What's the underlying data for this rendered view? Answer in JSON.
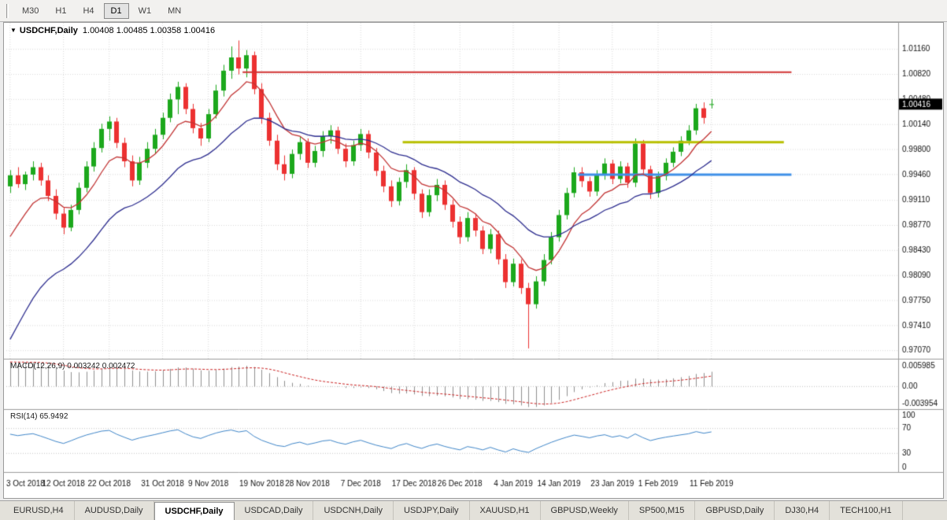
{
  "toolbar": {
    "timeframes": [
      {
        "label": "M30",
        "active": false
      },
      {
        "label": "H1",
        "active": false
      },
      {
        "label": "H4",
        "active": false
      },
      {
        "label": "D1",
        "active": true
      },
      {
        "label": "W1",
        "active": false
      },
      {
        "label": "MN",
        "active": false
      }
    ]
  },
  "chart": {
    "symbol": "USDCHF,Daily",
    "ohlc_text": "1.00408 1.00485 1.00358 1.00416",
    "dropdown_icon": "▼",
    "macd_label": "MACD(12,26,9) 0.003242 0.002472",
    "rsi_label": "RSI(14) 65.9492",
    "price_badge": "1.00416"
  },
  "chart_data": {
    "type": "candlestick",
    "symbol": "USDCHF",
    "timeframe": "Daily",
    "ohlc_current": {
      "open": 1.00408,
      "high": 1.00485,
      "low": 1.00358,
      "close": 1.00416
    },
    "x_tick_labels": [
      "3 Oct 2018",
      "12 Oct 2018",
      "22 Oct 2018",
      "31 Oct 2018",
      "9 Nov 2018",
      "19 Nov 2018",
      "28 Nov 2018",
      "7 Dec 2018",
      "17 Dec 2018",
      "26 Dec 2018",
      "4 Jan 2019",
      "14 Jan 2019",
      "23 Jan 2019",
      "1 Feb 2019",
      "11 Feb 2019"
    ],
    "price_ticks": [
      1.0116,
      1.0082,
      1.0048,
      1.0014,
      0.998,
      0.9946,
      0.9911,
      0.9877,
      0.9843,
      0.9809,
      0.9775,
      0.9741,
      0.9707
    ],
    "ylim": [
      0.9696,
      1.0152
    ],
    "total_slots": 117,
    "up_color": "#1ca81c",
    "down_color": "#ec3131",
    "candles": [
      [
        0.993,
        0.9952,
        0.9921,
        0.9945
      ],
      [
        0.9945,
        0.9956,
        0.9928,
        0.9933
      ],
      [
        0.9933,
        0.995,
        0.9925,
        0.9946
      ],
      [
        0.9946,
        0.9964,
        0.9938,
        0.9956
      ],
      [
        0.9956,
        0.9962,
        0.9931,
        0.9938
      ],
      [
        0.9938,
        0.9945,
        0.991,
        0.9917
      ],
      [
        0.9917,
        0.9926,
        0.9885,
        0.9893
      ],
      [
        0.9893,
        0.9901,
        0.9865,
        0.9874
      ],
      [
        0.9874,
        0.9905,
        0.9869,
        0.9898
      ],
      [
        0.9898,
        0.9935,
        0.9892,
        0.9928
      ],
      [
        0.9928,
        0.9964,
        0.9922,
        0.9957
      ],
      [
        0.9957,
        0.999,
        0.995,
        0.9982
      ],
      [
        0.9982,
        1.0015,
        0.9976,
        1.0008
      ],
      [
        1.0008,
        1.0025,
        0.9992,
        1.0018
      ],
      [
        1.0018,
        1.0023,
        0.9982,
        0.9989
      ],
      [
        0.9989,
        0.9996,
        0.9956,
        0.9964
      ],
      [
        0.9964,
        0.9972,
        0.993,
        0.9938
      ],
      [
        0.9938,
        0.997,
        0.9932,
        0.9962
      ],
      [
        0.9962,
        0.999,
        0.9955,
        0.9981
      ],
      [
        0.9981,
        1.0008,
        0.9974,
        1.0
      ],
      [
        1.0,
        1.003,
        0.9994,
        1.0023
      ],
      [
        1.0023,
        1.0056,
        1.0017,
        1.0048
      ],
      [
        1.0048,
        1.0072,
        1.0028,
        1.0065
      ],
      [
        1.0065,
        1.007,
        1.0028,
        1.0035
      ],
      [
        1.0035,
        1.0042,
        1.0002,
        1.0009
      ],
      [
        1.0009,
        1.0016,
        0.9985,
        0.9995
      ],
      [
        0.9995,
        1.0035,
        0.999,
        1.0028
      ],
      [
        1.0028,
        1.0068,
        1.0022,
        1.006
      ],
      [
        1.006,
        1.0095,
        1.0052,
        1.0087
      ],
      [
        1.0087,
        1.012,
        1.0076,
        1.0105
      ],
      [
        1.0105,
        1.0128,
        1.0082,
        1.009
      ],
      [
        1.009,
        1.0115,
        1.0078,
        1.0108
      ],
      [
        1.0108,
        1.0113,
        1.0055,
        1.0062
      ],
      [
        1.0062,
        1.007,
        1.0015,
        1.0023
      ],
      [
        1.0023,
        1.003,
        0.9985,
        0.9992
      ],
      [
        0.9992,
        1.0,
        0.9952,
        0.996
      ],
      [
        0.996,
        0.9972,
        0.9938,
        0.9947
      ],
      [
        0.9947,
        0.998,
        0.9941,
        0.9974
      ],
      [
        0.9974,
        0.9998,
        0.9966,
        0.999
      ],
      [
        0.999,
        0.9995,
        0.9955,
        0.9962
      ],
      [
        0.9962,
        0.9985,
        0.9956,
        0.9978
      ],
      [
        0.9978,
        1.0005,
        0.997,
        0.9998
      ],
      [
        0.9998,
        1.0013,
        0.9988,
        1.0006
      ],
      [
        1.0006,
        1.0011,
        0.9974,
        0.9981
      ],
      [
        0.9981,
        0.9988,
        0.9956,
        0.9964
      ],
      [
        0.9964,
        0.9992,
        0.9958,
        0.9986
      ],
      [
        0.9986,
        1.0008,
        0.9978,
        1.0001
      ],
      [
        1.0001,
        1.0006,
        0.9968,
        0.9976
      ],
      [
        0.9976,
        0.9982,
        0.9944,
        0.9951
      ],
      [
        0.9951,
        0.9958,
        0.9922,
        0.993
      ],
      [
        0.993,
        0.9938,
        0.9902,
        0.991
      ],
      [
        0.991,
        0.9942,
        0.9904,
        0.9936
      ],
      [
        0.9936,
        0.996,
        0.9928,
        0.9952
      ],
      [
        0.9952,
        0.9956,
        0.9912,
        0.992
      ],
      [
        0.992,
        0.9926,
        0.9887,
        0.9895
      ],
      [
        0.9895,
        0.9926,
        0.9889,
        0.9918
      ],
      [
        0.9918,
        0.994,
        0.991,
        0.9932
      ],
      [
        0.9932,
        0.9938,
        0.9898,
        0.9905
      ],
      [
        0.9905,
        0.9912,
        0.9874,
        0.9882
      ],
      [
        0.9882,
        0.9889,
        0.9852,
        0.9861
      ],
      [
        0.9861,
        0.9895,
        0.9855,
        0.9887
      ],
      [
        0.9887,
        0.9893,
        0.9862,
        0.987
      ],
      [
        0.987,
        0.9876,
        0.9838,
        0.9845
      ],
      [
        0.9845,
        0.9872,
        0.9839,
        0.9865
      ],
      [
        0.9865,
        0.987,
        0.9824,
        0.9831
      ],
      [
        0.9831,
        0.9838,
        0.9792,
        0.98
      ],
      [
        0.98,
        0.9832,
        0.9794,
        0.9825
      ],
      [
        0.9825,
        0.9831,
        0.9784,
        0.9792
      ],
      [
        0.9792,
        0.9799,
        0.971,
        0.977
      ],
      [
        0.977,
        0.9808,
        0.9764,
        0.9801
      ],
      [
        0.9801,
        0.9838,
        0.9795,
        0.983
      ],
      [
        0.983,
        0.9868,
        0.9824,
        0.9861
      ],
      [
        0.9861,
        0.9898,
        0.9855,
        0.9891
      ],
      [
        0.9891,
        0.9928,
        0.9885,
        0.9921
      ],
      [
        0.9921,
        0.9956,
        0.9915,
        0.9949
      ],
      [
        0.9949,
        0.9956,
        0.9929,
        0.9937
      ],
      [
        0.9937,
        0.9943,
        0.9916,
        0.9923
      ],
      [
        0.9923,
        0.9952,
        0.9917,
        0.9946
      ],
      [
        0.9946,
        0.9968,
        0.9939,
        0.9961
      ],
      [
        0.9961,
        0.9966,
        0.9933,
        0.994
      ],
      [
        0.994,
        0.9964,
        0.9934,
        0.9957
      ],
      [
        0.9957,
        0.9962,
        0.9928,
        0.9935
      ],
      [
        0.9935,
        0.9995,
        0.9929,
        0.9988
      ],
      [
        0.9988,
        0.9993,
        0.9946,
        0.9953
      ],
      [
        0.9953,
        0.9958,
        0.9913,
        0.9921
      ],
      [
        0.9921,
        0.995,
        0.9915,
        0.9944
      ],
      [
        0.9944,
        0.9968,
        0.9938,
        0.9962
      ],
      [
        0.9962,
        0.9983,
        0.9956,
        0.9977
      ],
      [
        0.9977,
        0.9998,
        0.9971,
        0.9992
      ],
      [
        0.9992,
        1.0013,
        0.9986,
        1.0006
      ],
      [
        1.0006,
        1.0042,
        1.0,
        1.0036
      ],
      [
        1.0036,
        1.0044,
        1.0015,
        1.0023
      ],
      [
        1.00408,
        1.00485,
        1.00358,
        1.00416
      ]
    ],
    "ma_lines": [
      {
        "period": 8,
        "seed": 0.9838,
        "color": "#c23434"
      },
      {
        "period": 21,
        "seed": 0.97,
        "color": "#2d2d8f"
      }
    ],
    "hlines": [
      {
        "value": 1.0085,
        "color": "#d03030",
        "width": 2,
        "from": 31,
        "to": 103
      },
      {
        "value": 0.999,
        "color": "#b8bf00",
        "width": 3,
        "from": 52,
        "to": 102
      },
      {
        "value": 0.9946,
        "color": "#3e8fe8",
        "width": 3,
        "from": 75,
        "to": 103
      }
    ],
    "macd": {
      "label": "MACD(12,26,9) 0.003242 0.002472",
      "fast": 12,
      "slow": 26,
      "signal": 9,
      "seed_fast": 0.9885,
      "seed_slow": 0.9832,
      "hist_color": "#8f8f8f",
      "signal_color": "#cc2222",
      "y_tick_labels": [
        "0.005985",
        "0.00",
        "-0.003954"
      ]
    },
    "rsi": {
      "label": "RSI(14) 65.9492",
      "period": 14,
      "value": 65.9492,
      "color": "#3f86c9",
      "levels": [
        70,
        30
      ],
      "y_tick_labels": [
        "100",
        "70",
        "30",
        "0"
      ]
    }
  },
  "bottom_tabs": {
    "items": [
      {
        "label": "EURUSD,H4",
        "active": false
      },
      {
        "label": "AUDUSD,Daily",
        "active": false
      },
      {
        "label": "USDCHF,Daily",
        "active": true
      },
      {
        "label": "USDCAD,Daily",
        "active": false
      },
      {
        "label": "USDCNH,Daily",
        "active": false
      },
      {
        "label": "USDJPY,Daily",
        "active": false
      },
      {
        "label": "XAUUSD,H1",
        "active": false
      },
      {
        "label": "GBPUSD,Weekly",
        "active": false
      },
      {
        "label": "SP500,M15",
        "active": false
      },
      {
        "label": "GBPUSD,Daily",
        "active": false
      },
      {
        "label": "DJ30,H4",
        "active": false
      },
      {
        "label": "TECH100,H1",
        "active": false
      }
    ]
  }
}
